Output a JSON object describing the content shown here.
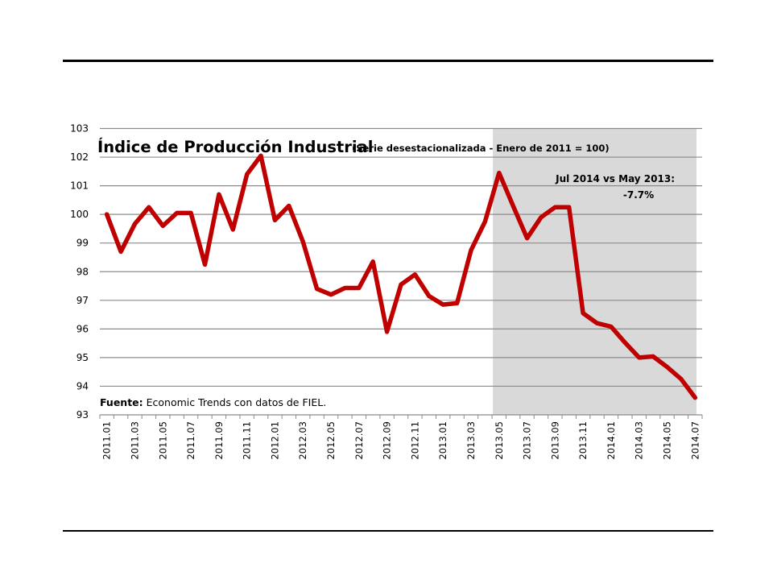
{
  "chart_data": {
    "type": "line",
    "title": "Índice de Producción Industrial",
    "subtitle": "(Serie desestacionalizada - Enero de 2011  = 100)",
    "xlabel": "",
    "ylabel": "",
    "ylim": [
      93,
      103
    ],
    "yticks": [
      93,
      94,
      95,
      96,
      97,
      98,
      99,
      100,
      101,
      102,
      103
    ],
    "grid": true,
    "legend": "none",
    "x": [
      "2011.01",
      "2011.02",
      "2011.03",
      "2011.04",
      "2011.05",
      "2011.06",
      "2011.07",
      "2011.08",
      "2011.09",
      "2011.10",
      "2011.11",
      "2011.12",
      "2012.01",
      "2012.02",
      "2012.03",
      "2012.04",
      "2012.05",
      "2012.06",
      "2012.07",
      "2012.08",
      "2012.09",
      "2012.10",
      "2012.11",
      "2012.12",
      "2013.01",
      "2013.02",
      "2013.03",
      "2013.04",
      "2013.05",
      "2013.06",
      "2013.07",
      "2013.08",
      "2013.09",
      "2013.10",
      "2013.11",
      "2013.12",
      "2014.01",
      "2014.02",
      "2014.03",
      "2014.04",
      "2014.05",
      "2014.06",
      "2014.07"
    ],
    "xtick_labels": [
      "2011.01",
      "2011.03",
      "2011.05",
      "2011.07",
      "2011.09",
      "2011.11",
      "2012.01",
      "2012.03",
      "2012.05",
      "2012.07",
      "2012.09",
      "2012.11",
      "2013.01",
      "2013.03",
      "2013.05",
      "2013.07",
      "2013.09",
      "2013.11",
      "2014.01",
      "2014.03",
      "2014.05",
      "2014.07"
    ],
    "series": [
      {
        "name": "Índice de Producción Industrial",
        "color": "#c00000",
        "values": [
          100.0,
          98.7,
          99.67,
          100.25,
          99.6,
          100.05,
          100.05,
          98.25,
          100.7,
          99.47,
          101.4,
          102.05,
          99.8,
          100.3,
          99.05,
          97.4,
          97.2,
          97.43,
          97.43,
          98.35,
          95.9,
          97.55,
          97.9,
          97.15,
          96.85,
          96.9,
          98.75,
          99.75,
          101.45,
          100.3,
          99.17,
          99.9,
          100.25,
          100.25,
          96.55,
          96.2,
          96.08,
          95.52,
          95.0,
          95.04,
          94.67,
          94.25,
          93.6
        ]
      }
    ],
    "shaded_range": {
      "from": "2013.05",
      "to": "2014.07",
      "color": "#d9d9d9"
    },
    "annotations": [
      {
        "line1": "Jul 2014  vs May 2013:",
        "line2": "-7.7%"
      }
    ],
    "source": {
      "label": "Fuente:",
      "text": " Economic Trends con datos de FIEL."
    }
  },
  "colors": {
    "line": "#c00000",
    "shade": "#d9d9d9",
    "grid": "#8c8c8c"
  }
}
